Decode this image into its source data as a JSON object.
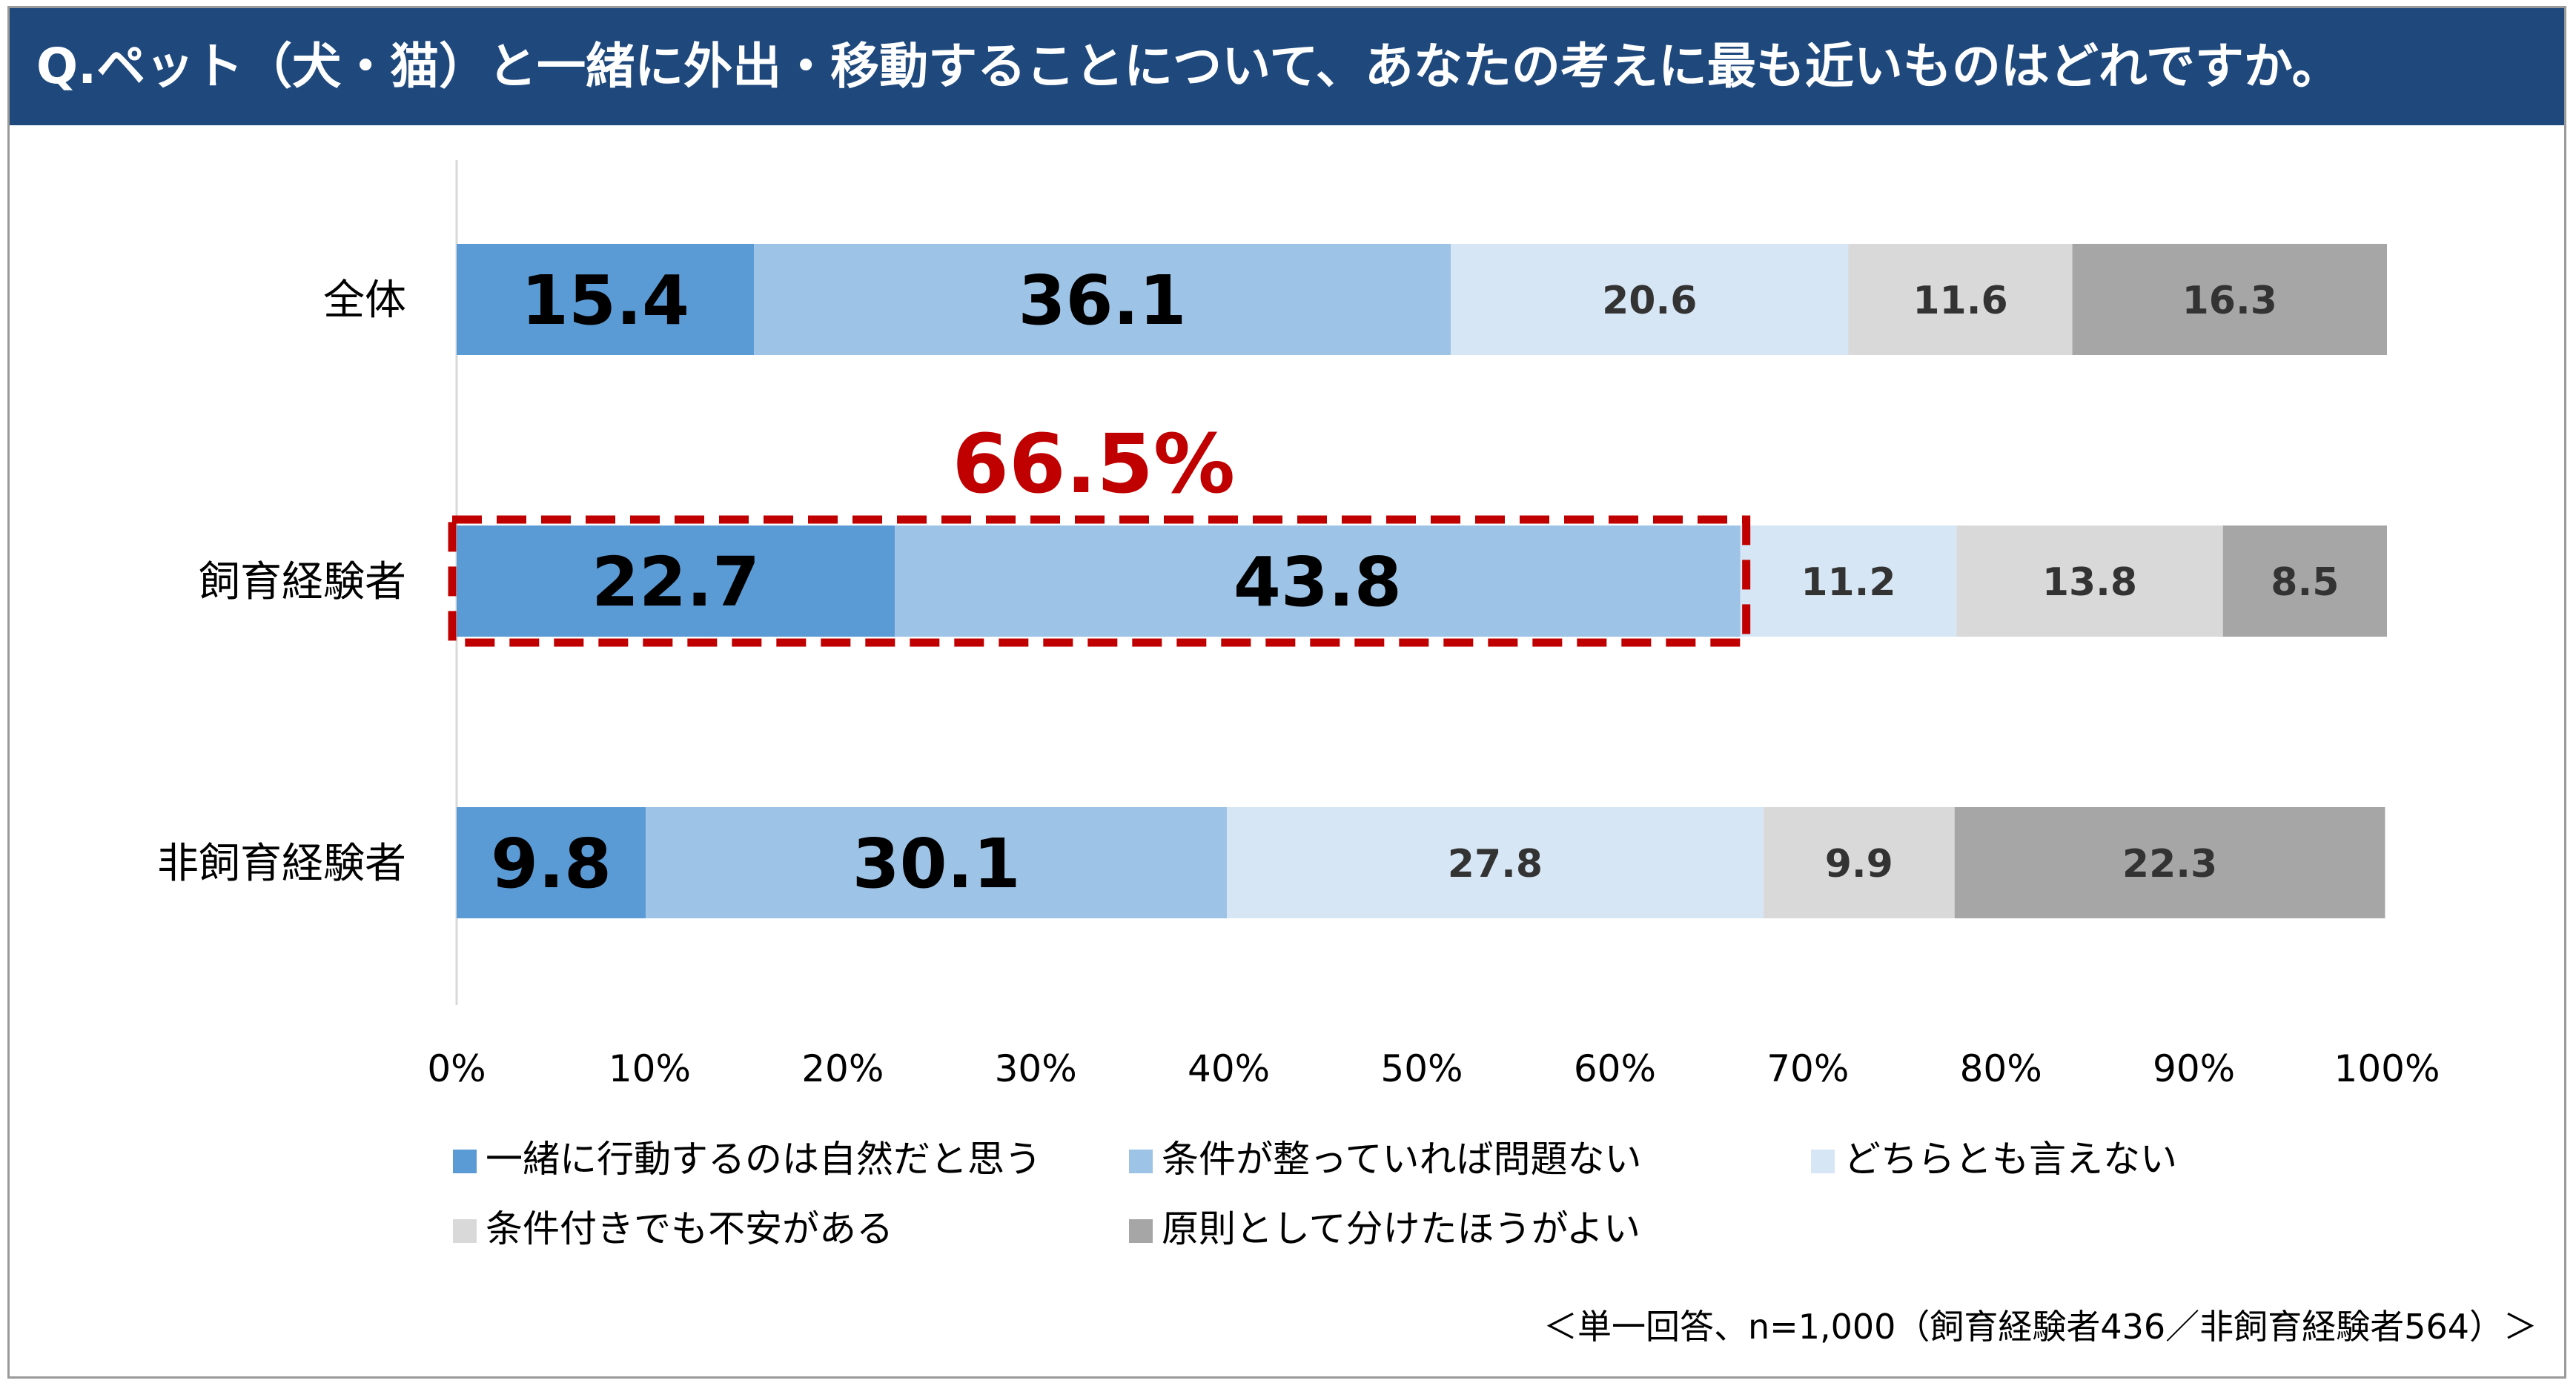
{
  "header": {
    "title": "Q.ペット（犬・猫）と一緒に外出・移動することについて、あなたの考えに最も近いものはどれですか。"
  },
  "chart_data": {
    "type": "bar",
    "orientation": "horizontal",
    "stacked": true,
    "percent_stacked": true,
    "categories": [
      "全体",
      "飼育経験者",
      "非飼育経験者"
    ],
    "series": [
      {
        "name": "一緒に行動するのは自然だと思う",
        "color": "#5b9bd5",
        "values": [
          15.4,
          22.7,
          9.8
        ]
      },
      {
        "name": "条件が整っていれば問題ない",
        "color": "#9dc3e6",
        "values": [
          36.1,
          43.8,
          30.1
        ]
      },
      {
        "name": "どちらとも言えない",
        "color": "#d6e6f4",
        "values": [
          20.6,
          11.2,
          27.8
        ]
      },
      {
        "name": "条件付きでも不安がある",
        "color": "#d9d9d9",
        "values": [
          11.6,
          13.8,
          9.9
        ]
      },
      {
        "name": "原則として分けたほうがよい",
        "color": "#a6a6a6",
        "values": [
          16.3,
          8.5,
          22.3
        ]
      }
    ],
    "xlim": [
      0,
      100
    ],
    "x_ticks": [
      "0%",
      "10%",
      "20%",
      "30%",
      "40%",
      "50%",
      "60%",
      "70%",
      "80%",
      "90%",
      "100%"
    ],
    "legend_position": "bottom",
    "annotation": {
      "text": "66.5%",
      "category": "飼育経験者",
      "range": [
        0,
        66.5
      ],
      "color": "#c00000"
    },
    "footnote": "＜単一回答、n=1,000（飼育経験者436／非飼育経験者564）＞"
  }
}
